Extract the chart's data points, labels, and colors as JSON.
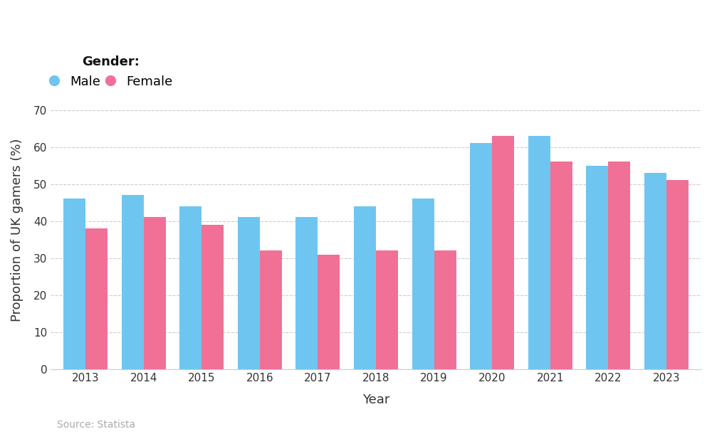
{
  "years": [
    2013,
    2014,
    2015,
    2016,
    2017,
    2018,
    2019,
    2020,
    2021,
    2022,
    2023
  ],
  "male": [
    46,
    47,
    44,
    41,
    41,
    44,
    46,
    61,
    63,
    55,
    53
  ],
  "female": [
    38,
    41,
    39,
    32,
    31,
    32,
    32,
    63,
    56,
    56,
    51
  ],
  "male_color": "#6EC6F0",
  "female_color": "#F07096",
  "background_color": "#ffffff",
  "ylabel": "Proportion of UK gamers (%)",
  "xlabel": "Year",
  "legend_title": "Gender:",
  "legend_male": "Male",
  "legend_female": "Female",
  "source": "Source: Statista",
  "ylim": [
    0,
    75
  ],
  "yticks": [
    0,
    10,
    20,
    30,
    40,
    50,
    60,
    70
  ],
  "grid_color": "#cccccc",
  "bar_width": 0.38,
  "axis_fontsize": 13,
  "tick_fontsize": 11,
  "legend_fontsize": 13,
  "source_fontsize": 10,
  "source_color": "#aaaaaa"
}
